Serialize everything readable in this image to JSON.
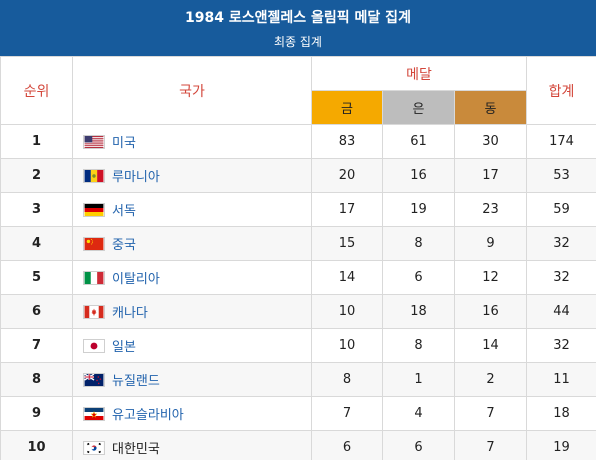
{
  "header": {
    "title": "1984 로스앤젤레스 올림픽 메달 집계",
    "subtitle": "최종 집계"
  },
  "columns": {
    "rank": "순위",
    "country": "국가",
    "medal_group": "메달",
    "gold": "금",
    "silver": "은",
    "bronze": "동",
    "total": "합계"
  },
  "colors": {
    "header_bg": "#175b9c",
    "gold": "#f5a900",
    "silver": "#bdbdbd",
    "bronze": "#c98a3b",
    "header_text": "#d3473b",
    "link": "#2263ad"
  },
  "rows": [
    {
      "rank": "1",
      "country": "미국",
      "flag": "usa-flag",
      "gold": "83",
      "silver": "61",
      "bronze": "30",
      "total": "174",
      "link": true
    },
    {
      "rank": "2",
      "country": "루마니아",
      "flag": "romania-flag",
      "gold": "20",
      "silver": "16",
      "bronze": "17",
      "total": "53",
      "link": true
    },
    {
      "rank": "3",
      "country": "서독",
      "flag": "west-germany-flag",
      "gold": "17",
      "silver": "19",
      "bronze": "23",
      "total": "59",
      "link": true
    },
    {
      "rank": "4",
      "country": "중국",
      "flag": "china-flag",
      "gold": "15",
      "silver": "8",
      "bronze": "9",
      "total": "32",
      "link": true
    },
    {
      "rank": "5",
      "country": "이탈리아",
      "flag": "italy-flag",
      "gold": "14",
      "silver": "6",
      "bronze": "12",
      "total": "32",
      "link": true
    },
    {
      "rank": "6",
      "country": "캐나다",
      "flag": "canada-flag",
      "gold": "10",
      "silver": "18",
      "bronze": "16",
      "total": "44",
      "link": true
    },
    {
      "rank": "7",
      "country": "일본",
      "flag": "japan-flag",
      "gold": "10",
      "silver": "8",
      "bronze": "14",
      "total": "32",
      "link": true
    },
    {
      "rank": "8",
      "country": "뉴질랜드",
      "flag": "new-zealand-flag",
      "gold": "8",
      "silver": "1",
      "bronze": "2",
      "total": "11",
      "link": true
    },
    {
      "rank": "9",
      "country": "유고슬라비아",
      "flag": "yugoslavia-flag",
      "gold": "7",
      "silver": "4",
      "bronze": "7",
      "total": "18",
      "link": true
    },
    {
      "rank": "10",
      "country": "대한민국",
      "flag": "south-korea-flag",
      "gold": "6",
      "silver": "6",
      "bronze": "7",
      "total": "19",
      "link": false
    }
  ]
}
